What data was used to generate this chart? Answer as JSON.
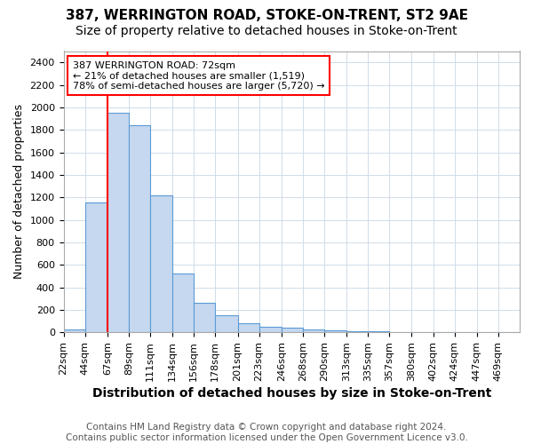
{
  "title": "387, WERRINGTON ROAD, STOKE-ON-TRENT, ST2 9AE",
  "subtitle": "Size of property relative to detached houses in Stoke-on-Trent",
  "xlabel": "Distribution of detached houses by size in Stoke-on-Trent",
  "ylabel": "Number of detached properties",
  "bin_labels": [
    "22sqm",
    "44sqm",
    "67sqm",
    "89sqm",
    "111sqm",
    "134sqm",
    "156sqm",
    "178sqm",
    "201sqm",
    "223sqm",
    "246sqm",
    "268sqm",
    "290sqm",
    "313sqm",
    "335sqm",
    "357sqm",
    "380sqm",
    "402sqm",
    "424sqm",
    "447sqm",
    "469sqm"
  ],
  "bin_edges": [
    22,
    44,
    67,
    89,
    111,
    134,
    156,
    178,
    201,
    223,
    246,
    268,
    290,
    313,
    335,
    357,
    380,
    402,
    424,
    447,
    469
  ],
  "bar_heights": [
    25,
    1155,
    1950,
    1840,
    1220,
    520,
    265,
    155,
    80,
    50,
    42,
    22,
    15,
    13,
    8,
    5,
    5,
    4,
    2,
    2,
    0
  ],
  "bar_color": "#c5d8f0",
  "bar_edge_color": "#5b9bd5",
  "property_size": 72,
  "red_line_x": 67,
  "annotation_text": "387 WERRINGTON ROAD: 72sqm\n← 21% of detached houses are smaller (1,519)\n78% of semi-detached houses are larger (5,720) →",
  "annotation_box_color": "white",
  "annotation_box_edge_color": "red",
  "ylim": [
    0,
    2500
  ],
  "yticks": [
    0,
    200,
    400,
    600,
    800,
    1000,
    1200,
    1400,
    1600,
    1800,
    2000,
    2200,
    2400
  ],
  "footer": "Contains HM Land Registry data © Crown copyright and database right 2024.\nContains public sector information licensed under the Open Government Licence v3.0.",
  "background_color": "#ffffff",
  "grid_color": "#d0dce8",
  "title_fontsize": 11,
  "subtitle_fontsize": 10,
  "xlabel_fontsize": 10,
  "ylabel_fontsize": 9,
  "tick_fontsize": 8,
  "footer_fontsize": 7.5
}
